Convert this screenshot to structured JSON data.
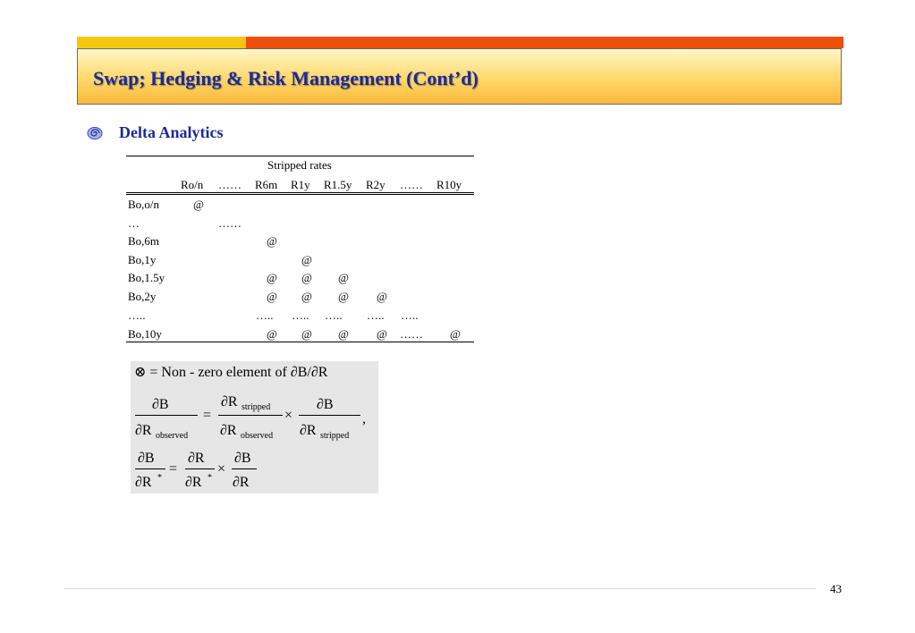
{
  "slide": {
    "title": "Swap; Hedging & Risk Management (Cont’d)",
    "subtitle": "Delta Analytics",
    "page_number": "43",
    "colors": {
      "title_text": "#1a2a9c",
      "bar_yellow": "#f6c60e",
      "bar_orange": "#f04e0c"
    }
  },
  "table": {
    "group_header": "Stripped rates",
    "columns": [
      "Ro/n",
      "……",
      "R6m",
      "R1y",
      "R1.5y",
      "R2y",
      "……",
      "R10y"
    ],
    "rows": [
      {
        "label": "Bo,o/n",
        "cells": [
          "@",
          "",
          "",
          "",
          "",
          "",
          "",
          ""
        ]
      },
      {
        "label": "…",
        "cells": [
          "",
          "……",
          "",
          "",
          "",
          "",
          "",
          ""
        ]
      },
      {
        "label": "Bo,6m",
        "cells": [
          "",
          "",
          "@",
          "",
          "",
          "",
          "",
          ""
        ]
      },
      {
        "label": "Bo,1y",
        "cells": [
          "",
          "",
          "",
          "@",
          "",
          "",
          "",
          ""
        ]
      },
      {
        "label": "Bo,1.5y",
        "cells": [
          "",
          "",
          "@",
          "@",
          "@",
          "",
          "",
          ""
        ]
      },
      {
        "label": "Bo,2y",
        "cells": [
          "",
          "",
          "@",
          "@",
          "@",
          "@",
          "",
          ""
        ]
      },
      {
        "label": "…..",
        "cells": [
          "",
          "",
          "…..",
          "…..",
          "…..",
          "…..",
          "…..",
          ""
        ]
      },
      {
        "label": "Bo,10y",
        "cells": [
          "",
          "",
          "@",
          "@",
          "@",
          "@",
          "……",
          "@"
        ]
      }
    ]
  },
  "formulas": {
    "line1": "⊗ = Non - zero element  of  ∂B/∂R",
    "eq2": {
      "lhs_num": "∂B",
      "lhs_den": "∂R",
      "lhs_den_sub": "observed",
      "equals": "=",
      "m1_num": "∂R",
      "m1_num_sub": "stripped",
      "m1_den": "∂R",
      "m1_den_sub": "observed",
      "times": "×",
      "m2_num": "∂B",
      "m2_den": "∂R",
      "m2_den_sub": "stripped",
      "comma": ","
    },
    "eq3": {
      "lhs_num": "∂B",
      "lhs_den": "∂R",
      "lhs_den_sup": "*",
      "equals": "=",
      "m1_num": "∂R",
      "m1_den": "∂R",
      "m1_den_sup": "*",
      "times": "×",
      "m2_num": "∂B",
      "m2_den": "∂R"
    }
  }
}
